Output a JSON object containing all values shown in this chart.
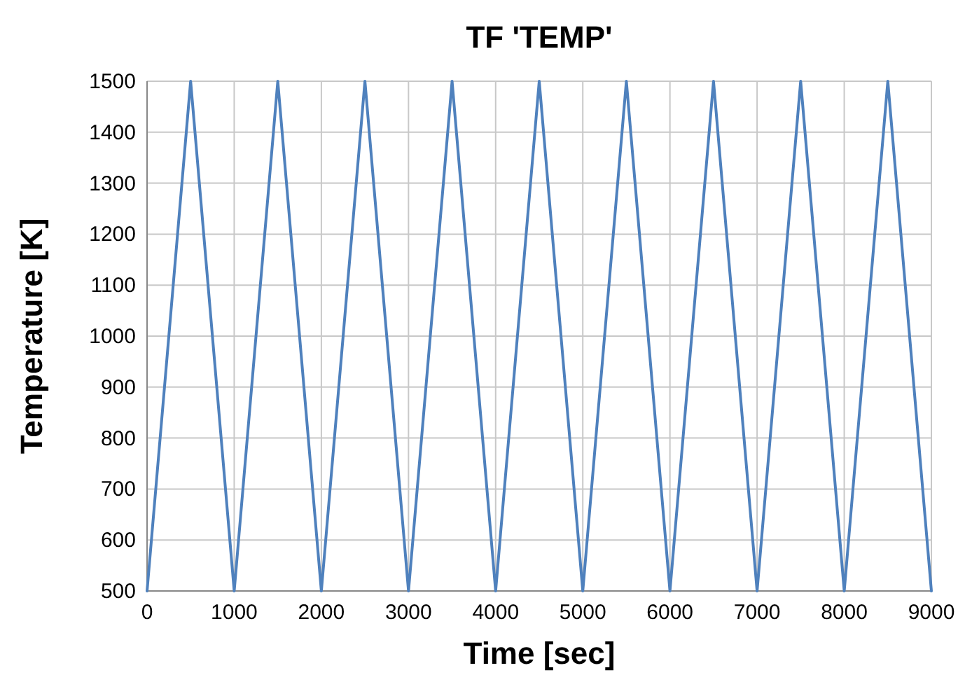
{
  "chart_data": {
    "type": "line",
    "title": "TF 'TEMP'",
    "xlabel": "Time [sec]",
    "ylabel": "Temperature [K]",
    "x": [
      0,
      500,
      1000,
      1500,
      2000,
      2500,
      3000,
      3500,
      4000,
      4500,
      5000,
      5500,
      6000,
      6500,
      7000,
      7500,
      8000,
      8500,
      9000
    ],
    "series": [
      {
        "color": "#4f81bd",
        "values": [
          500,
          1500,
          500,
          1500,
          500,
          1500,
          500,
          1500,
          500,
          1500,
          500,
          1500,
          500,
          1500,
          500,
          1500,
          500,
          1500,
          500
        ]
      }
    ],
    "xlim": [
      0,
      9000
    ],
    "xticks": [
      0,
      1000,
      2000,
      3000,
      4000,
      5000,
      6000,
      7000,
      8000,
      9000
    ],
    "ylim": [
      500,
      1500
    ],
    "yticks": [
      500,
      600,
      700,
      800,
      900,
      1000,
      1100,
      1200,
      1300,
      1400,
      1500
    ],
    "grid": true,
    "marker": "none",
    "line_style": "solid"
  }
}
